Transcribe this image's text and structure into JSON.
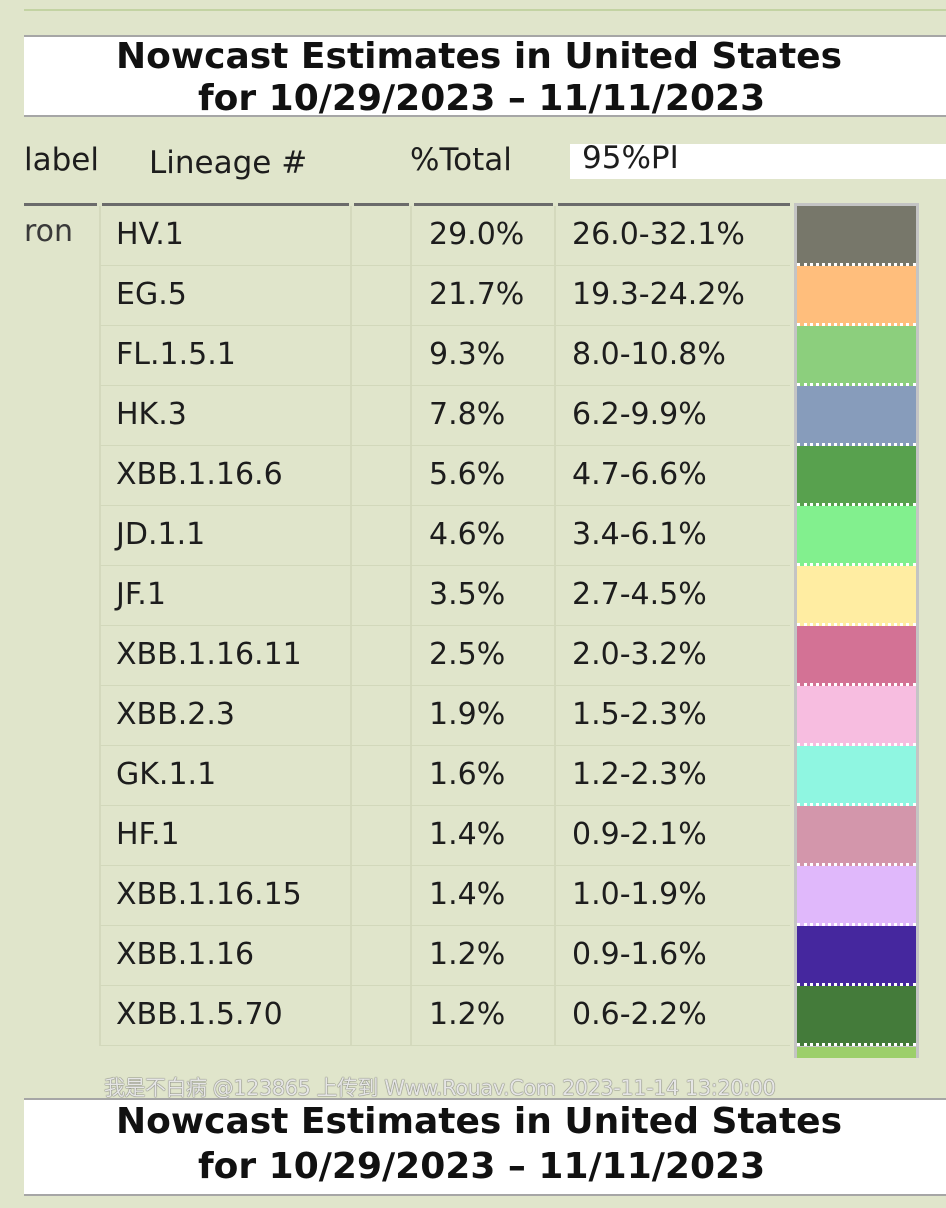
{
  "title": {
    "line1": "Nowcast Estimates in United States",
    "line2": "for 10/29/2023 – 11/11/2023"
  },
  "headers": {
    "label": "label",
    "lineage": "Lineage #",
    "total": "%Total",
    "pi": "95%PI"
  },
  "group_label": "ron",
  "rows": [
    {
      "lineage": "HV.1",
      "total": "29.0%",
      "pi": "26.0-32.1%",
      "color": "#77776a"
    },
    {
      "lineage": "EG.5",
      "total": "21.7%",
      "pi": "19.3-24.2%",
      "color": "#ffbe7c"
    },
    {
      "lineage": "FL.1.5.1",
      "total": "9.3%",
      "pi": "8.0-10.8%",
      "color": "#8ccf7d"
    },
    {
      "lineage": "HK.3",
      "total": "7.8%",
      "pi": "6.2-9.9%",
      "color": "#879cbb"
    },
    {
      "lineage": "XBB.1.16.6",
      "total": "5.6%",
      "pi": "4.7-6.6%",
      "color": "#58a14e"
    },
    {
      "lineage": "JD.1.1",
      "total": "4.6%",
      "pi": "3.4-6.1%",
      "color": "#82f08e"
    },
    {
      "lineage": "JF.1",
      "total": "3.5%",
      "pi": "2.7-4.5%",
      "color": "#ffeda2"
    },
    {
      "lineage": "XBB.1.16.11",
      "total": "2.5%",
      "pi": "2.0-3.2%",
      "color": "#d37295"
    },
    {
      "lineage": "XBB.2.3",
      "total": "1.9%",
      "pi": "1.5-2.3%",
      "color": "#f7bde0"
    },
    {
      "lineage": "GK.1.1",
      "total": "1.6%",
      "pi": "1.2-2.3%",
      "color": "#8ff6e1"
    },
    {
      "lineage": "HF.1",
      "total": "1.4%",
      "pi": "0.9-2.1%",
      "color": "#d396ab"
    },
    {
      "lineage": "XBB.1.16.15",
      "total": "1.4%",
      "pi": "1.0-1.9%",
      "color": "#e0b8fb"
    },
    {
      "lineage": "XBB.1.16",
      "total": "1.2%",
      "pi": "0.9-1.6%",
      "color": "#45279e"
    },
    {
      "lineage": "XBB.1.5.70",
      "total": "1.2%",
      "pi": "0.6-2.2%",
      "color": "#447b3a"
    }
  ],
  "partial_swatch_color": "#9ccf6a",
  "watermark": "我是不白病 @123865 上传到 Www.Rouav.Com 2023-11-14 13:20:00"
}
